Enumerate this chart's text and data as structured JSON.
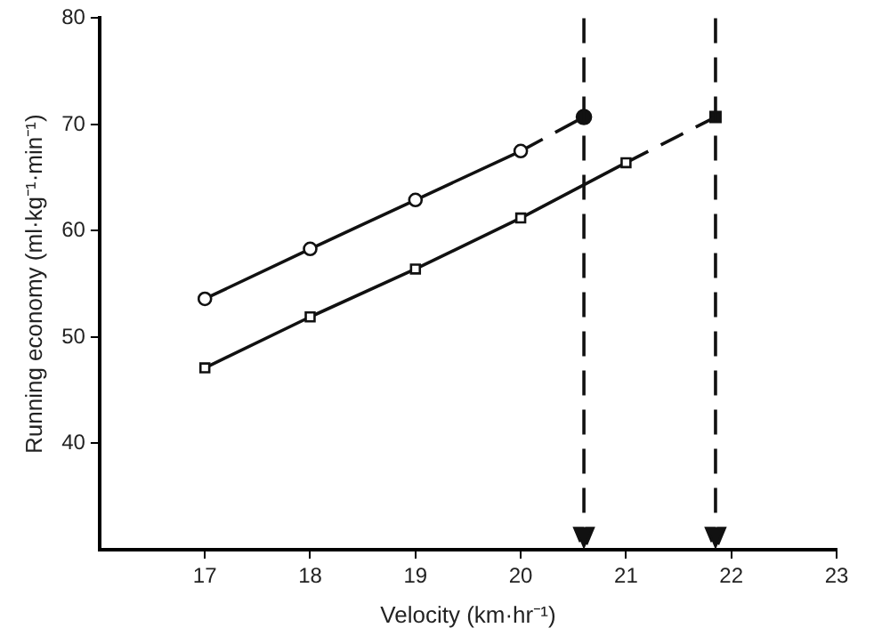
{
  "chart_data": {
    "type": "line",
    "xlabel": "Velocity (km·hr⁻¹)",
    "ylabel": "Running economy (ml·kg⁻¹·min⁻¹)",
    "xlim": [
      16,
      23
    ],
    "xticks": [
      17,
      18,
      19,
      20,
      21,
      22,
      23
    ],
    "ylim": [
      30,
      80
    ],
    "yticks": [
      40,
      50,
      60,
      70,
      80
    ],
    "grid": false,
    "legend": false,
    "series": [
      {
        "color": "#111111",
        "marker": "circle",
        "line_style": "solid",
        "x": [
          17,
          18,
          19,
          20
        ],
        "values": [
          53.6,
          58.3,
          62.9,
          67.5
        ]
      },
      {
        "color": "#111111",
        "marker": "none",
        "line_style": "dashed",
        "x": [
          20,
          20.6
        ],
        "values": [
          67.5,
          70.7
        ]
      },
      {
        "color": "#111111",
        "marker": "square",
        "line_style": "solid",
        "x": [
          17,
          18,
          19,
          20,
          21
        ],
        "values": [
          47.1,
          51.9,
          56.4,
          61.2,
          66.4
        ]
      },
      {
        "color": "#111111",
        "marker": "none",
        "line_style": "dashed",
        "x": [
          21,
          21.85
        ],
        "values": [
          66.4,
          70.7
        ]
      },
      {
        "type": "scatter",
        "color": "#111111",
        "marker": "circle",
        "x": [
          20.6
        ],
        "values": [
          70.7
        ]
      },
      {
        "type": "scatter",
        "color": "#111111",
        "marker": "square",
        "x": [
          21.85
        ],
        "values": [
          70.7
        ]
      }
    ],
    "ref_lines": [
      {
        "axis": "x",
        "value": 20.6,
        "color": "#111111",
        "line_style": "dashed"
      },
      {
        "axis": "x",
        "value": 21.85,
        "color": "#111111",
        "line_style": "dashed"
      }
    ]
  }
}
